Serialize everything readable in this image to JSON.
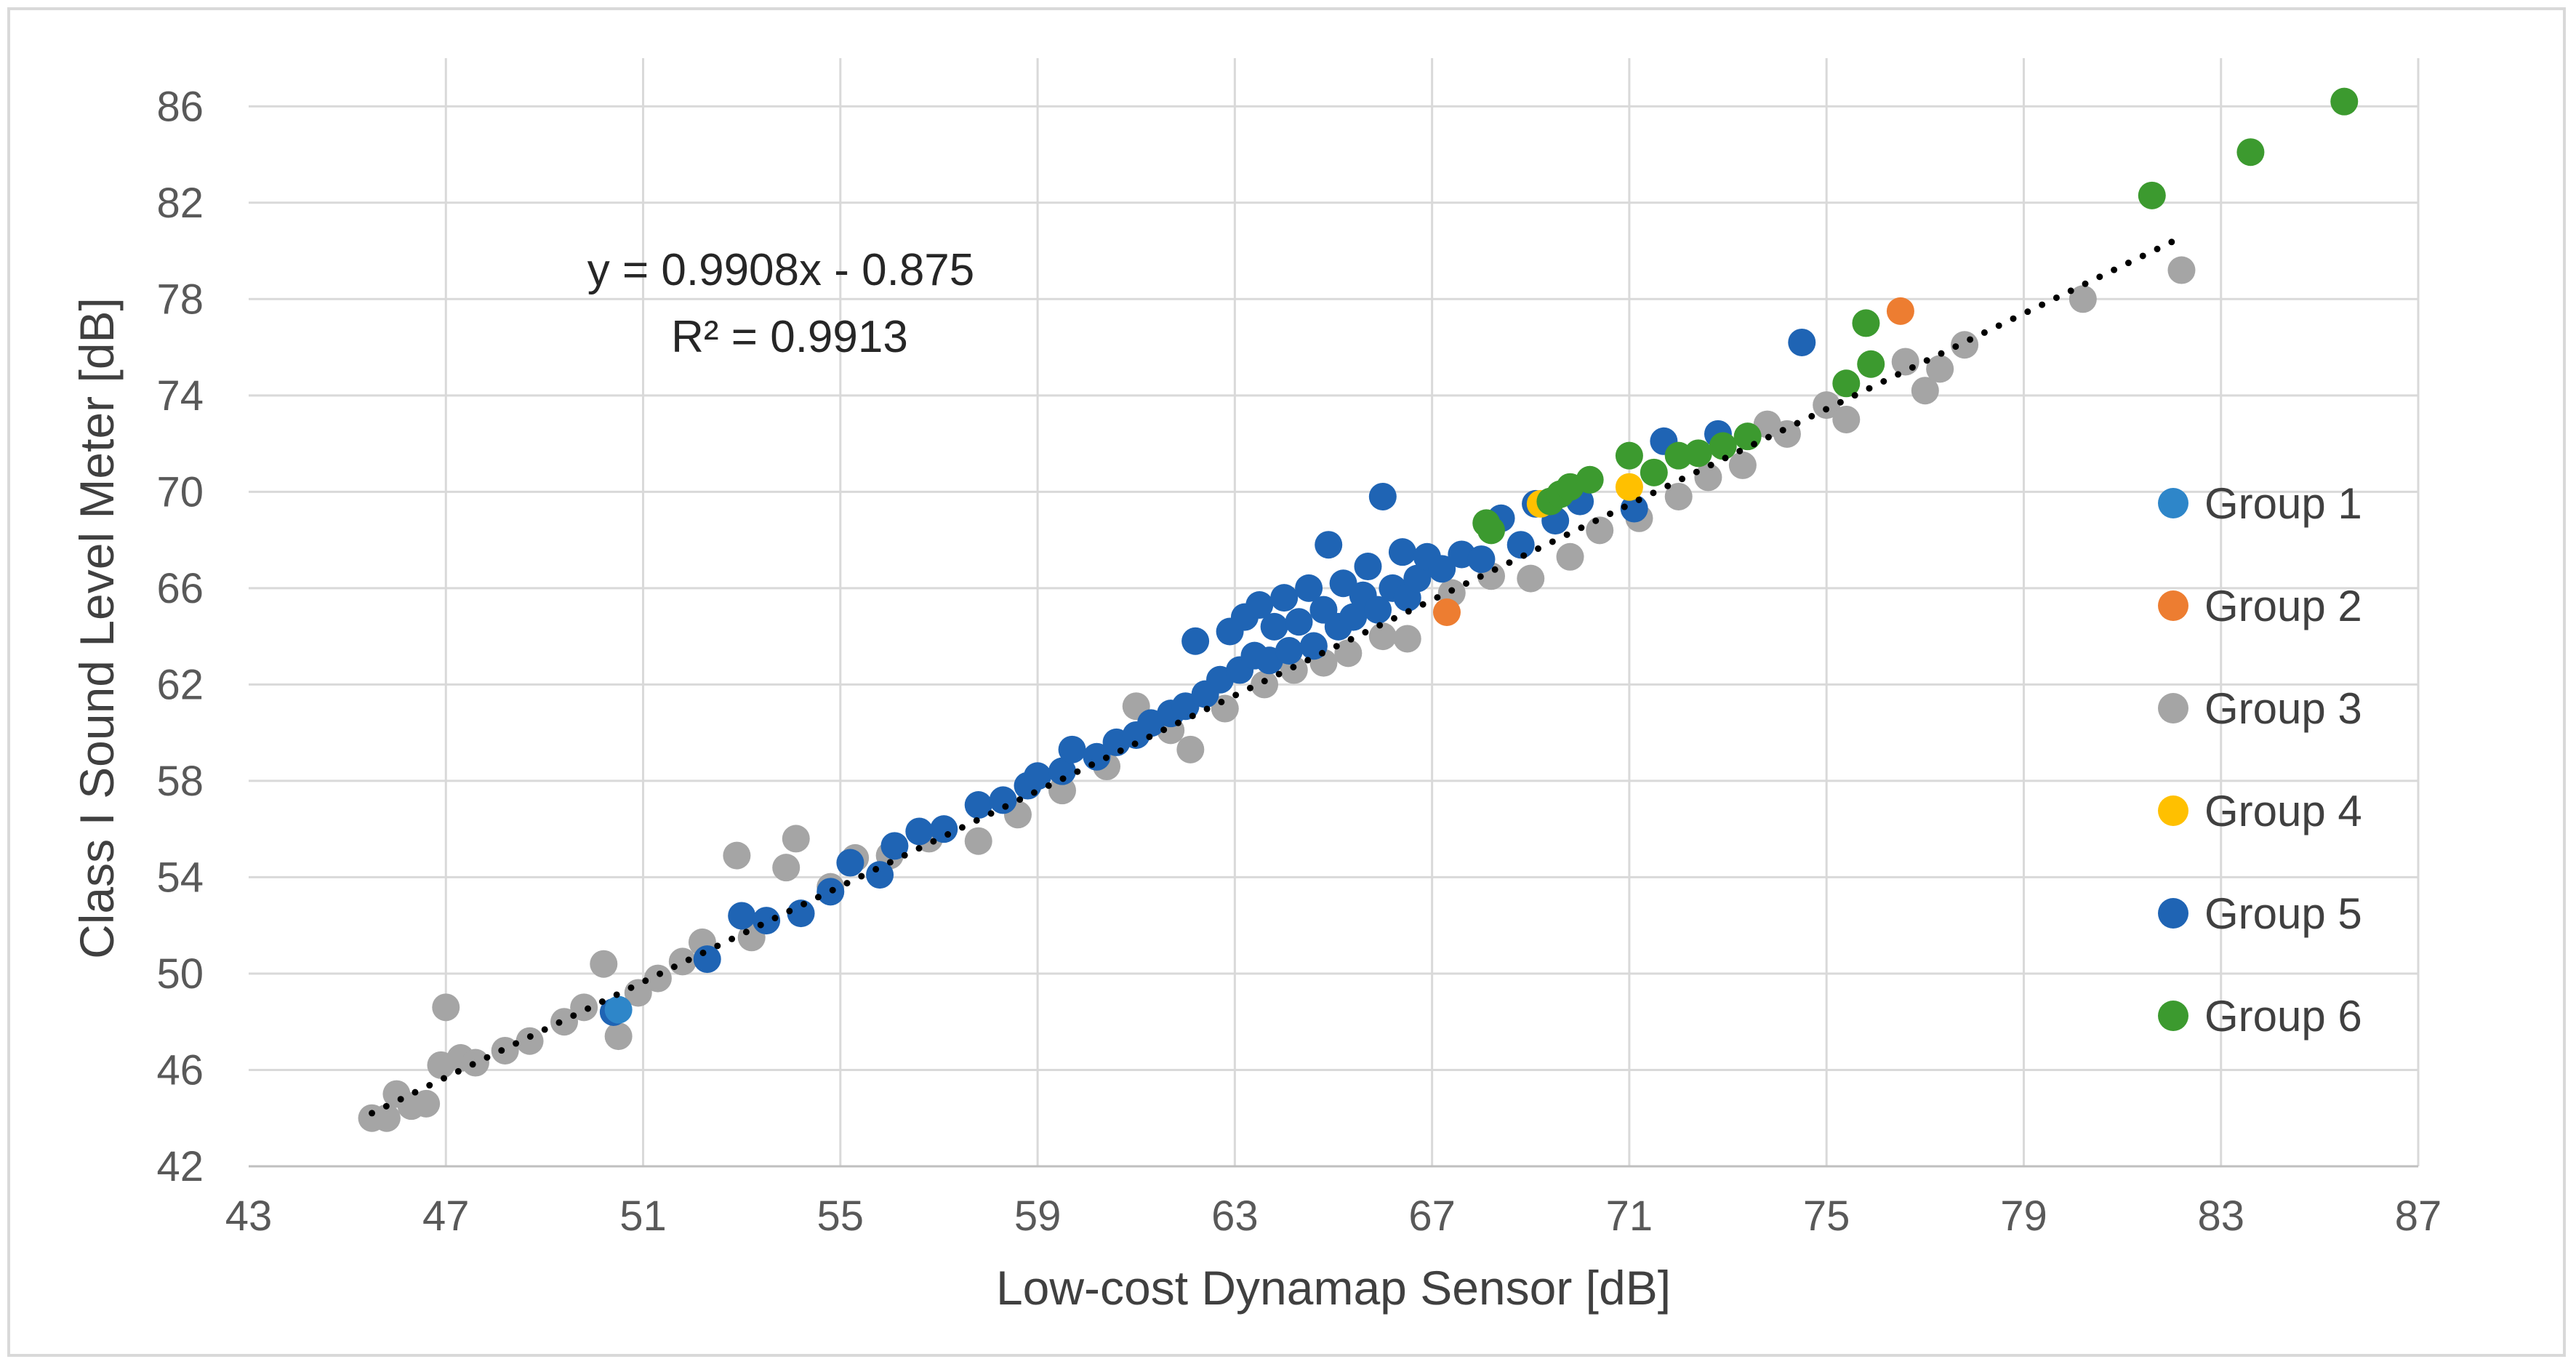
{
  "chart_data": {
    "type": "scatter",
    "title": "",
    "xlabel": "Low-cost Dynamap Sensor [dB]",
    "ylabel": "Class I Sound Level Meter [dB]",
    "xlim": [
      43,
      87
    ],
    "ylim": [
      42,
      88
    ],
    "x_ticks": [
      43,
      47,
      51,
      55,
      59,
      63,
      67,
      71,
      75,
      79,
      83,
      87
    ],
    "y_ticks": [
      42,
      46,
      50,
      54,
      58,
      62,
      66,
      70,
      74,
      78,
      82,
      86
    ],
    "grid": "major",
    "legend_position": "right",
    "trendline": {
      "style": "dotted",
      "color": "#000000",
      "slope": 0.9908,
      "intercept": -0.875,
      "x_range": [
        45.5,
        82.2
      ],
      "equation": "y = 0.9908x - 0.875",
      "r_squared_label": "R² = 0.9913"
    },
    "series": [
      {
        "name": "Group 1",
        "color": "#2e86c9",
        "points": [
          [
            50.5,
            48.5
          ]
        ]
      },
      {
        "name": "Group 2",
        "color": "#ed7d31",
        "points": [
          [
            76.5,
            77.5
          ],
          [
            67.3,
            65.0
          ]
        ]
      },
      {
        "name": "Group 3",
        "color": "#a5a5a5",
        "points": [
          [
            45.5,
            44.0
          ],
          [
            45.8,
            44.0
          ],
          [
            46.0,
            45.0
          ],
          [
            46.3,
            44.5
          ],
          [
            46.6,
            44.6
          ],
          [
            46.9,
            46.2
          ],
          [
            47.0,
            48.6
          ],
          [
            47.3,
            46.5
          ],
          [
            47.6,
            46.3
          ],
          [
            48.2,
            46.8
          ],
          [
            48.7,
            47.2
          ],
          [
            49.4,
            48.0
          ],
          [
            49.8,
            48.6
          ],
          [
            50.2,
            50.4
          ],
          [
            50.5,
            47.4
          ],
          [
            50.9,
            49.2
          ],
          [
            51.3,
            49.8
          ],
          [
            51.8,
            50.5
          ],
          [
            52.2,
            51.3
          ],
          [
            52.9,
            54.9
          ],
          [
            53.2,
            51.5
          ],
          [
            53.9,
            54.4
          ],
          [
            54.1,
            55.6
          ],
          [
            54.8,
            53.6
          ],
          [
            55.3,
            54.8
          ],
          [
            56.0,
            54.9
          ],
          [
            56.8,
            55.6
          ],
          [
            57.8,
            55.5
          ],
          [
            58.6,
            56.6
          ],
          [
            59.5,
            57.6
          ],
          [
            60.4,
            58.6
          ],
          [
            61.0,
            61.1
          ],
          [
            61.7,
            60.1
          ],
          [
            62.1,
            59.3
          ],
          [
            62.8,
            61.0
          ],
          [
            63.6,
            62.0
          ],
          [
            64.2,
            62.6
          ],
          [
            64.8,
            62.9
          ],
          [
            65.3,
            63.3
          ],
          [
            66.0,
            64.0
          ],
          [
            66.5,
            63.9
          ],
          [
            67.4,
            65.8
          ],
          [
            68.2,
            66.5
          ],
          [
            69.0,
            66.4
          ],
          [
            69.8,
            67.3
          ],
          [
            70.4,
            68.4
          ],
          [
            71.2,
            68.9
          ],
          [
            72.0,
            69.8
          ],
          [
            72.6,
            70.6
          ],
          [
            73.3,
            71.1
          ],
          [
            73.8,
            72.8
          ],
          [
            74.2,
            72.4
          ],
          [
            75.0,
            73.6
          ],
          [
            75.4,
            73.0
          ],
          [
            76.6,
            75.4
          ],
          [
            77.0,
            74.2
          ],
          [
            77.3,
            75.1
          ],
          [
            77.8,
            76.1
          ],
          [
            80.2,
            78.0
          ],
          [
            82.2,
            79.2
          ]
        ]
      },
      {
        "name": "Group 4",
        "color": "#ffc000",
        "points": [
          [
            71.0,
            70.2
          ],
          [
            69.2,
            69.5
          ]
        ]
      },
      {
        "name": "Group 5",
        "color": "#1f64b4",
        "points": [
          [
            50.4,
            48.4
          ],
          [
            52.3,
            50.6
          ],
          [
            53.0,
            52.4
          ],
          [
            53.5,
            52.2
          ],
          [
            54.2,
            52.5
          ],
          [
            54.8,
            53.4
          ],
          [
            55.2,
            54.6
          ],
          [
            55.8,
            54.1
          ],
          [
            56.1,
            55.3
          ],
          [
            56.6,
            55.9
          ],
          [
            57.1,
            56.0
          ],
          [
            57.8,
            57.0
          ],
          [
            58.3,
            57.2
          ],
          [
            58.8,
            57.8
          ],
          [
            59.0,
            58.2
          ],
          [
            59.5,
            58.4
          ],
          [
            59.7,
            59.3
          ],
          [
            60.2,
            59.0
          ],
          [
            60.6,
            59.6
          ],
          [
            61.0,
            59.9
          ],
          [
            61.3,
            60.4
          ],
          [
            61.7,
            60.8
          ],
          [
            62.0,
            61.1
          ],
          [
            62.2,
            63.8
          ],
          [
            62.4,
            61.6
          ],
          [
            62.7,
            62.2
          ],
          [
            62.9,
            64.2
          ],
          [
            63.1,
            62.6
          ],
          [
            63.2,
            64.8
          ],
          [
            63.4,
            63.2
          ],
          [
            63.5,
            65.3
          ],
          [
            63.7,
            63.0
          ],
          [
            63.8,
            64.4
          ],
          [
            64.0,
            65.6
          ],
          [
            64.1,
            63.4
          ],
          [
            64.3,
            64.6
          ],
          [
            64.5,
            66.0
          ],
          [
            64.6,
            63.6
          ],
          [
            64.8,
            65.1
          ],
          [
            64.9,
            67.8
          ],
          [
            65.1,
            64.4
          ],
          [
            65.2,
            66.2
          ],
          [
            65.4,
            64.8
          ],
          [
            65.6,
            65.7
          ],
          [
            65.7,
            66.9
          ],
          [
            65.9,
            65.1
          ],
          [
            66.0,
            69.8
          ],
          [
            66.2,
            66.0
          ],
          [
            66.4,
            67.5
          ],
          [
            66.5,
            65.6
          ],
          [
            66.7,
            66.4
          ],
          [
            66.9,
            67.3
          ],
          [
            67.2,
            66.8
          ],
          [
            67.6,
            67.4
          ],
          [
            68.0,
            67.2
          ],
          [
            68.4,
            68.9
          ],
          [
            68.8,
            67.8
          ],
          [
            69.1,
            69.5
          ],
          [
            69.5,
            68.8
          ],
          [
            70.0,
            69.6
          ],
          [
            71.1,
            69.3
          ],
          [
            71.7,
            72.1
          ],
          [
            72.8,
            72.4
          ],
          [
            74.5,
            76.2
          ]
        ]
      },
      {
        "name": "Group 6",
        "color": "#3c9a2f",
        "points": [
          [
            68.1,
            68.7
          ],
          [
            68.2,
            68.4
          ],
          [
            69.4,
            69.6
          ],
          [
            69.6,
            69.9
          ],
          [
            69.8,
            70.2
          ],
          [
            70.2,
            70.5
          ],
          [
            71.0,
            71.5
          ],
          [
            71.5,
            70.8
          ],
          [
            72.0,
            71.5
          ],
          [
            72.4,
            71.6
          ],
          [
            72.9,
            71.9
          ],
          [
            73.4,
            72.3
          ],
          [
            75.4,
            74.5
          ],
          [
            75.8,
            77.0
          ],
          [
            75.9,
            75.3
          ],
          [
            81.6,
            82.3
          ],
          [
            83.6,
            84.1
          ],
          [
            85.5,
            86.2
          ]
        ]
      }
    ]
  }
}
